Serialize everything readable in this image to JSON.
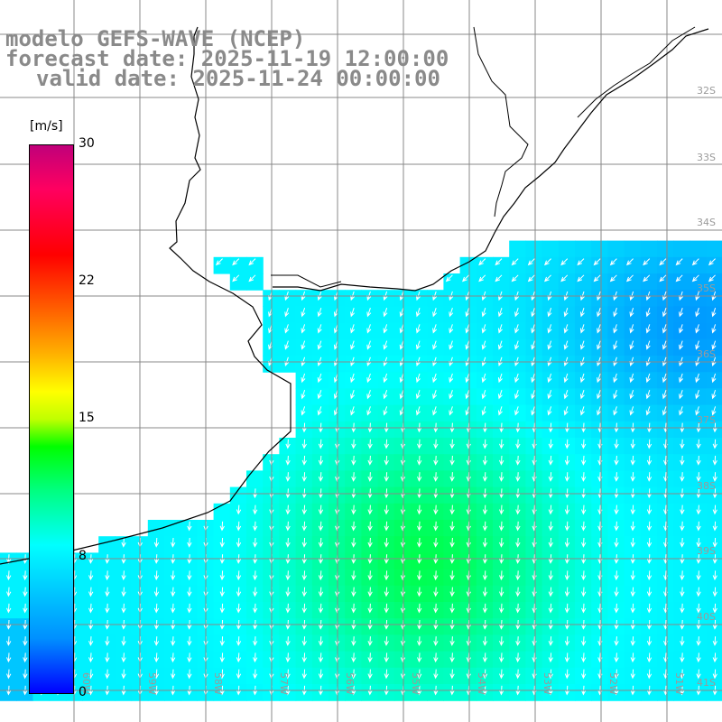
{
  "title": {
    "line1": "modelo GEFS-WAVE (NCEP)",
    "line2": "forecast date: 2025-11-19 12:00:00",
    "line3": "valid date: 2025-11-24 00:00:00"
  },
  "colorbar": {
    "unit": "[m/s]",
    "ticks": [
      "30",
      "22",
      "15",
      "8",
      "0"
    ],
    "tick_values": [
      30,
      22,
      15,
      8,
      0
    ],
    "colors": [
      "#0000ff",
      "#0080ff",
      "#00ffff",
      "#00ff80",
      "#00ff00",
      "#c0ff00",
      "#ffff00",
      "#ff8000",
      "#ff0000",
      "#ff0080",
      "#c0007a"
    ]
  },
  "lat_labels": [
    "32S",
    "33S",
    "34S",
    "35S",
    "36S",
    "37S",
    "38S",
    "39S",
    "40S",
    "41S"
  ],
  "lon_labels": [
    "60W",
    "59W",
    "58W",
    "57W",
    "56W",
    "55W",
    "54W",
    "53W",
    "52W",
    "51W"
  ],
  "colors": {
    "land": "#ffffff",
    "coast": "#000000",
    "grid": "#888888",
    "arrow": "#ffffff",
    "title": "#8a8a8a"
  }
}
